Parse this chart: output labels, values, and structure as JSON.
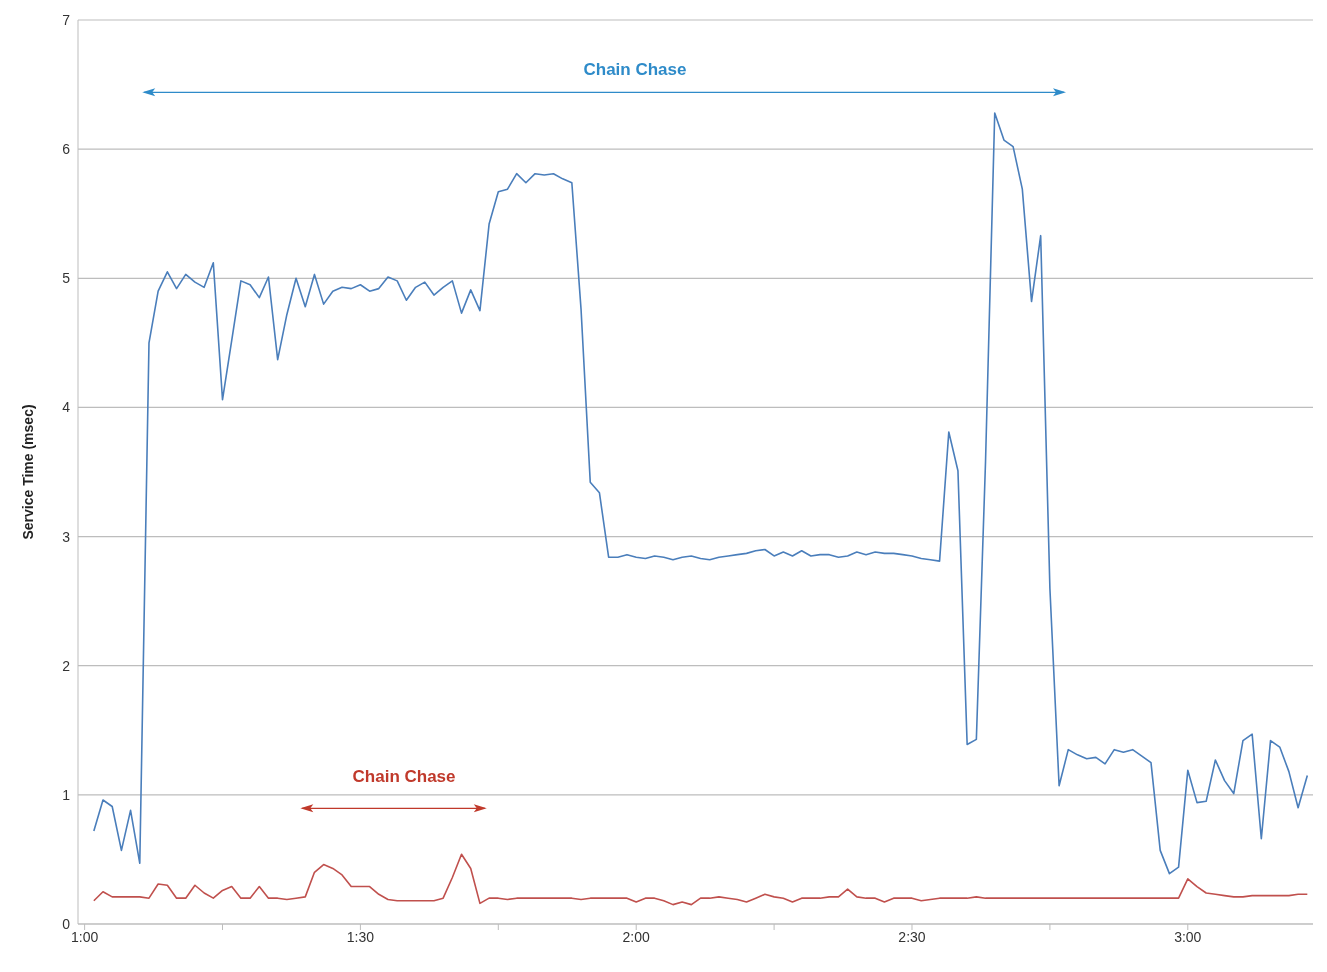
{
  "chart_data": {
    "type": "line",
    "ylabel": "Service Time (msec)",
    "x": [
      1.0167,
      1.0333,
      1.05,
      1.0667,
      1.0833,
      1.1,
      1.1167,
      1.1333,
      1.15,
      1.1667,
      1.1833,
      1.2,
      1.2167,
      1.2333,
      1.25,
      1.2667,
      1.2833,
      1.3,
      1.3167,
      1.3333,
      1.35,
      1.3667,
      1.3833,
      1.4,
      1.4167,
      1.4333,
      1.45,
      1.4667,
      1.4833,
      1.5,
      1.5167,
      1.5333,
      1.55,
      1.5667,
      1.5833,
      1.6,
      1.6167,
      1.6333,
      1.65,
      1.6667,
      1.6833,
      1.7,
      1.7167,
      1.7333,
      1.75,
      1.7667,
      1.7833,
      1.8,
      1.8167,
      1.8333,
      1.85,
      1.8667,
      1.8833,
      1.9,
      1.9167,
      1.9333,
      1.95,
      1.9667,
      1.9833,
      2.0,
      2.0167,
      2.0333,
      2.05,
      2.0667,
      2.0833,
      2.1,
      2.1167,
      2.1333,
      2.15,
      2.1667,
      2.1833,
      2.2,
      2.2167,
      2.2333,
      2.25,
      2.2667,
      2.2833,
      2.3,
      2.3167,
      2.3333,
      2.35,
      2.3667,
      2.3833,
      2.4,
      2.4167,
      2.4333,
      2.45,
      2.4667,
      2.4833,
      2.5,
      2.5167,
      2.5333,
      2.55,
      2.5667,
      2.5833,
      2.6,
      2.6167,
      2.6333,
      2.65,
      2.6667,
      2.6833,
      2.7,
      2.7167,
      2.7333,
      2.75,
      2.7667,
      2.7833,
      2.8,
      2.8167,
      2.8333,
      2.85,
      2.8667,
      2.8833,
      2.9,
      2.9167,
      2.9333,
      2.95,
      2.9667,
      2.9833,
      3.0,
      3.0167,
      3.0333,
      3.05,
      3.0667,
      3.0833,
      3.1,
      3.1167,
      3.1333,
      3.15,
      3.1667,
      3.1833,
      3.2,
      3.2167
    ],
    "series": [
      {
        "color": "#4a7ebb",
        "values": [
          0.72,
          0.96,
          0.91,
          0.57,
          0.88,
          0.47,
          4.5,
          4.9,
          5.05,
          4.92,
          5.03,
          4.97,
          4.93,
          5.12,
          4.06,
          4.52,
          4.98,
          4.95,
          4.85,
          5.01,
          4.37,
          4.72,
          5.0,
          4.78,
          5.03,
          4.8,
          4.9,
          4.93,
          4.92,
          4.95,
          4.9,
          4.92,
          5.01,
          4.98,
          4.83,
          4.93,
          4.97,
          4.87,
          4.93,
          4.98,
          4.73,
          4.91,
          4.75,
          5.42,
          5.67,
          5.69,
          5.81,
          5.74,
          5.81,
          5.8,
          5.81,
          5.77,
          5.74,
          4.76,
          3.42,
          3.34,
          2.84,
          2.84,
          2.86,
          2.84,
          2.83,
          2.85,
          2.84,
          2.82,
          2.84,
          2.85,
          2.83,
          2.82,
          2.84,
          2.85,
          2.86,
          2.87,
          2.89,
          2.9,
          2.85,
          2.88,
          2.85,
          2.89,
          2.85,
          2.86,
          2.86,
          2.84,
          2.85,
          2.88,
          2.86,
          2.88,
          2.87,
          2.87,
          2.86,
          2.85,
          2.83,
          2.82,
          2.81,
          3.81,
          3.51,
          1.39,
          1.43,
          3.58,
          6.28,
          6.07,
          6.02,
          5.69,
          4.82,
          5.33,
          2.6,
          1.07,
          1.35,
          1.31,
          1.28,
          1.29,
          1.24,
          1.35,
          1.33,
          1.35,
          1.3,
          1.25,
          0.57,
          0.39,
          0.44,
          1.19,
          0.94,
          0.95,
          1.27,
          1.11,
          1.01,
          1.42,
          1.47,
          0.66,
          1.42,
          1.37,
          1.18,
          0.9,
          1.15
        ]
      },
      {
        "color": "#c0504d",
        "values": [
          0.18,
          0.25,
          0.21,
          0.21,
          0.21,
          0.21,
          0.2,
          0.31,
          0.3,
          0.2,
          0.2,
          0.3,
          0.24,
          0.2,
          0.26,
          0.29,
          0.2,
          0.2,
          0.29,
          0.2,
          0.2,
          0.19,
          0.2,
          0.21,
          0.4,
          0.46,
          0.43,
          0.38,
          0.29,
          0.29,
          0.29,
          0.23,
          0.19,
          0.18,
          0.18,
          0.18,
          0.18,
          0.18,
          0.2,
          0.36,
          0.54,
          0.43,
          0.16,
          0.2,
          0.2,
          0.19,
          0.2,
          0.2,
          0.2,
          0.2,
          0.2,
          0.2,
          0.2,
          0.19,
          0.2,
          0.2,
          0.2,
          0.2,
          0.2,
          0.17,
          0.2,
          0.2,
          0.18,
          0.15,
          0.17,
          0.15,
          0.2,
          0.2,
          0.21,
          0.2,
          0.19,
          0.17,
          0.2,
          0.23,
          0.21,
          0.2,
          0.17,
          0.2,
          0.2,
          0.2,
          0.21,
          0.21,
          0.27,
          0.21,
          0.2,
          0.2,
          0.17,
          0.2,
          0.2,
          0.2,
          0.18,
          0.19,
          0.2,
          0.2,
          0.2,
          0.2,
          0.21,
          0.2,
          0.2,
          0.2,
          0.2,
          0.2,
          0.2,
          0.2,
          0.2,
          0.2,
          0.2,
          0.2,
          0.2,
          0.2,
          0.2,
          0.2,
          0.2,
          0.2,
          0.2,
          0.2,
          0.2,
          0.2,
          0.2,
          0.35,
          0.29,
          0.24,
          0.23,
          0.22,
          0.21,
          0.21,
          0.22,
          0.22,
          0.22,
          0.22,
          0.22,
          0.23,
          0.23
        ]
      }
    ],
    "xlim": [
      0.988,
      3.227
    ],
    "xticks": [
      {
        "value": 1,
        "label": "1:00"
      },
      {
        "value": 1.25,
        "label": null
      },
      {
        "value": 1.5,
        "label": "1:30"
      },
      {
        "value": 1.75,
        "label": null
      },
      {
        "value": 2,
        "label": "2:00"
      },
      {
        "value": 2.25,
        "label": null
      },
      {
        "value": 2.5,
        "label": "2:30"
      },
      {
        "value": 2.75,
        "label": null
      },
      {
        "value": 3,
        "label": "3:00"
      }
    ],
    "ylim": [
      0,
      7
    ],
    "yticks": [
      0,
      1,
      2,
      3,
      4,
      5,
      6,
      7
    ],
    "grid": "y",
    "line_style": "solid",
    "annotations": [
      "Chain Chase",
      "Chain Chase"
    ]
  }
}
